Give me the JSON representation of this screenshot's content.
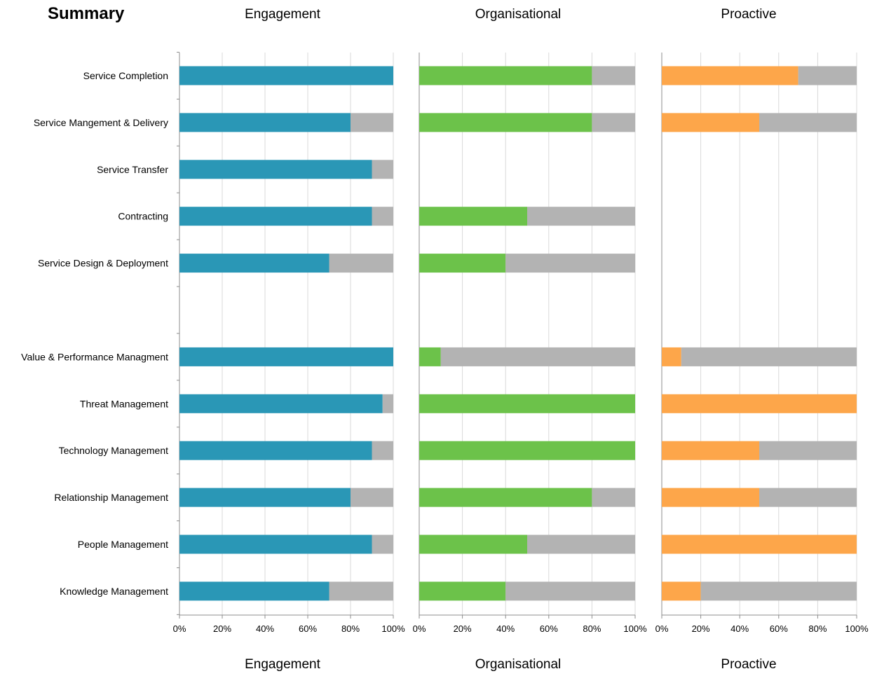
{
  "chart_data": {
    "type": "bar",
    "stacked": true,
    "title": "Summary",
    "categories": [
      "Service Completion",
      "Service Mangement & Delivery",
      "Service Transfer",
      "Contracting",
      "Service Design & Deployment",
      "",
      "Value & Performance Managment",
      "Threat Management",
      "Technology Management",
      "Relationship Management",
      "People Management",
      "Knowledge Management"
    ],
    "x_ticks": [
      "0%",
      "20%",
      "40%",
      "60%",
      "80%",
      "100%"
    ],
    "xlim": [
      0,
      100
    ],
    "grid": true,
    "remainder_color": "#b3b3b3",
    "panels": [
      {
        "title": "Engagement",
        "color": "#2a97b6",
        "values": [
          100,
          80,
          90,
          90,
          70,
          null,
          100,
          95,
          90,
          80,
          90,
          70
        ]
      },
      {
        "title": "Organisational",
        "color": "#6cc24a",
        "values": [
          80,
          80,
          null,
          50,
          40,
          null,
          10,
          100,
          100,
          80,
          50,
          40
        ]
      },
      {
        "title": "Proactive",
        "color": "#fda64a",
        "values": [
          70,
          50,
          null,
          null,
          null,
          null,
          10,
          100,
          50,
          50,
          100,
          20
        ]
      }
    ]
  }
}
